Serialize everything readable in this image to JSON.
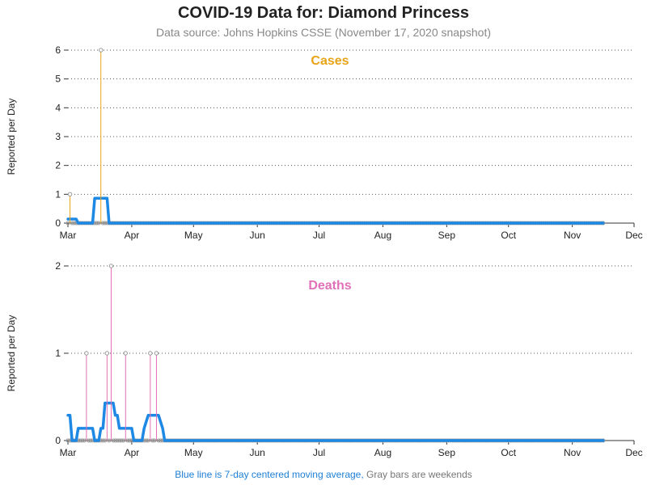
{
  "title": "COVID-19 Data for: Diamond Princess",
  "subtitle": "Data source: Johns Hopkins CSSE (November 17, 2020 snapshot)",
  "footnote": {
    "blue_part": "Blue line is 7-day centered moving average,",
    "gray_part": "Gray bars are weekends"
  },
  "colors": {
    "cases": "#e8a317",
    "deaths": "#e070b8",
    "moving_average": "#1e88e5",
    "marker": "#999999",
    "grid": "#555555"
  },
  "chart_data": [
    {
      "type": "line",
      "panel_label": "Cases",
      "ylabel": "Reported per Day",
      "x_tick_labels": [
        "Mar",
        "Apr",
        "May",
        "Jun",
        "Jul",
        "Aug",
        "Sep",
        "Oct",
        "Nov",
        "Dec"
      ],
      "x_ticks": [
        "2020-03-01",
        "2020-04-01",
        "2020-05-01",
        "2020-06-01",
        "2020-07-01",
        "2020-08-01",
        "2020-09-01",
        "2020-10-01",
        "2020-11-01",
        "2020-12-01"
      ],
      "xlim": [
        "2020-03-01",
        "2020-12-01"
      ],
      "ylim": [
        0,
        6
      ],
      "y_ticks": [
        0,
        1,
        2,
        3,
        4,
        5,
        6
      ],
      "grid": "horizontal dotted",
      "data_range": [
        "2020-03-01",
        "2020-11-16"
      ],
      "daily_nonzero": [
        {
          "date": "2020-03-02",
          "value": 1
        },
        {
          "date": "2020-03-17",
          "value": 6
        }
      ],
      "moving_average": [
        {
          "date": "2020-03-01",
          "value": 0.14
        },
        {
          "date": "2020-03-05",
          "value": 0.14
        },
        {
          "date": "2020-03-06",
          "value": 0
        },
        {
          "date": "2020-03-13",
          "value": 0
        },
        {
          "date": "2020-03-14",
          "value": 0.86
        },
        {
          "date": "2020-03-20",
          "value": 0.86
        },
        {
          "date": "2020-03-21",
          "value": 0
        },
        {
          "date": "2020-11-16",
          "value": 0
        }
      ]
    },
    {
      "type": "line",
      "panel_label": "Deaths",
      "ylabel": "Reported per Day",
      "x_tick_labels": [
        "Mar",
        "Apr",
        "May",
        "Jun",
        "Jul",
        "Aug",
        "Sep",
        "Oct",
        "Nov",
        "Dec"
      ],
      "x_ticks": [
        "2020-03-01",
        "2020-04-01",
        "2020-05-01",
        "2020-06-01",
        "2020-07-01",
        "2020-08-01",
        "2020-09-01",
        "2020-10-01",
        "2020-11-01",
        "2020-12-01"
      ],
      "xlim": [
        "2020-03-01",
        "2020-12-01"
      ],
      "ylim": [
        0,
        2
      ],
      "y_ticks": [
        0,
        1,
        2
      ],
      "grid": "horizontal dotted",
      "data_range": [
        "2020-03-01",
        "2020-11-16"
      ],
      "daily_nonzero": [
        {
          "date": "2020-03-10",
          "value": 1
        },
        {
          "date": "2020-03-20",
          "value": 1
        },
        {
          "date": "2020-03-22",
          "value": 2
        },
        {
          "date": "2020-03-29",
          "value": 1
        },
        {
          "date": "2020-04-10",
          "value": 1
        },
        {
          "date": "2020-04-13",
          "value": 1
        }
      ],
      "moving_average": [
        {
          "date": "2020-03-01",
          "value": 0.29
        },
        {
          "date": "2020-03-02",
          "value": 0.29
        },
        {
          "date": "2020-03-03",
          "value": 0
        },
        {
          "date": "2020-03-05",
          "value": 0
        },
        {
          "date": "2020-03-06",
          "value": 0.14
        },
        {
          "date": "2020-03-13",
          "value": 0.14
        },
        {
          "date": "2020-03-14",
          "value": 0
        },
        {
          "date": "2020-03-16",
          "value": 0
        },
        {
          "date": "2020-03-17",
          "value": 0.14
        },
        {
          "date": "2020-03-18",
          "value": 0.14
        },
        {
          "date": "2020-03-19",
          "value": 0.43
        },
        {
          "date": "2020-03-23",
          "value": 0.43
        },
        {
          "date": "2020-03-24",
          "value": 0.29
        },
        {
          "date": "2020-03-25",
          "value": 0.29
        },
        {
          "date": "2020-03-26",
          "value": 0.14
        },
        {
          "date": "2020-04-01",
          "value": 0.14
        },
        {
          "date": "2020-04-02",
          "value": 0
        },
        {
          "date": "2020-04-06",
          "value": 0
        },
        {
          "date": "2020-04-07",
          "value": 0.14
        },
        {
          "date": "2020-04-09",
          "value": 0.29
        },
        {
          "date": "2020-04-14",
          "value": 0.29
        },
        {
          "date": "2020-04-16",
          "value": 0.14
        },
        {
          "date": "2020-04-17",
          "value": 0
        },
        {
          "date": "2020-11-16",
          "value": 0
        }
      ]
    }
  ]
}
